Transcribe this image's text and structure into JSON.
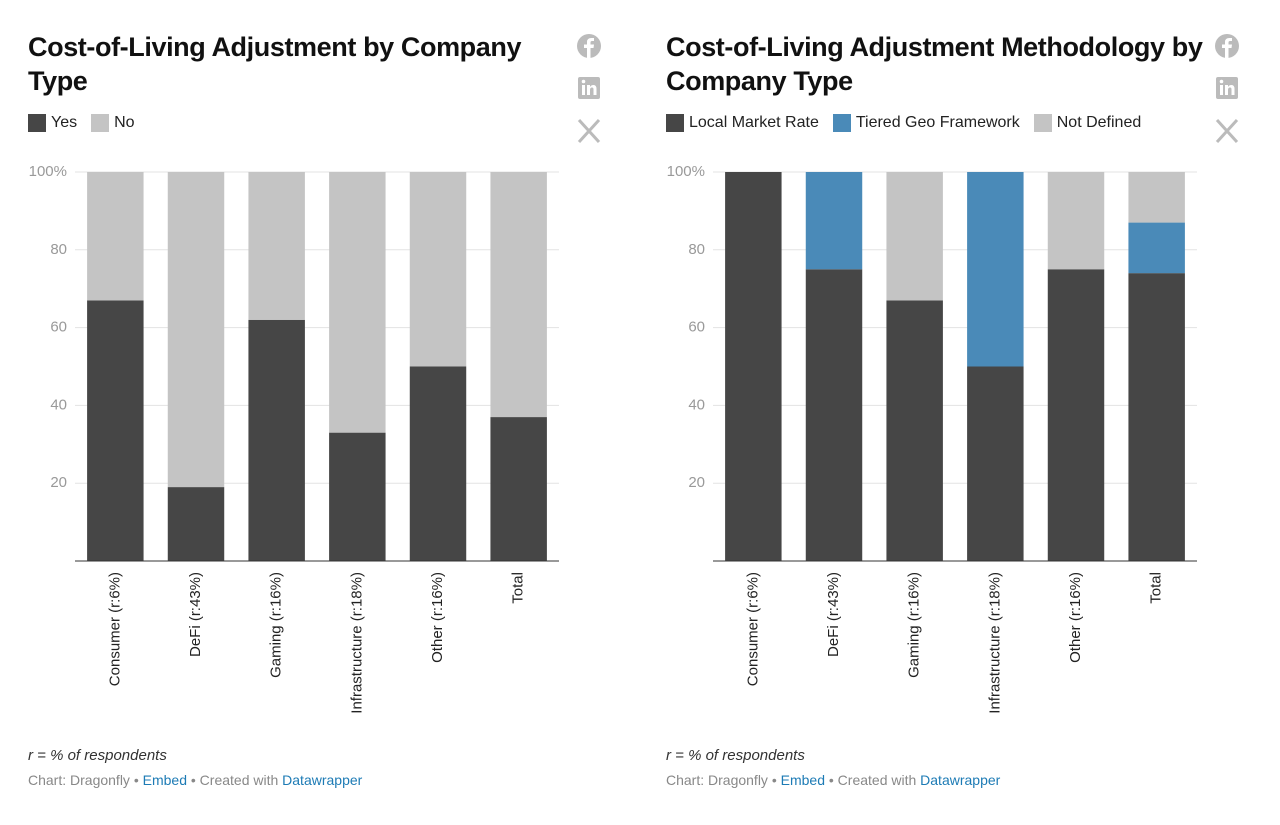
{
  "chart_data": [
    {
      "type": "bar",
      "stacked": true,
      "title": "Cost-of-Living Adjustment by Company Type",
      "categories": [
        "Consumer (r:6%)",
        "DeFi (r:43%)",
        "Gaming (r:16%)",
        "Infrastructure (r:18%)",
        "Other (r:16%)",
        "Total"
      ],
      "series": [
        {
          "name": "Yes",
          "color": "#464646",
          "values": [
            67,
            19,
            62,
            33,
            50,
            37
          ]
        },
        {
          "name": "No",
          "color": "#c4c4c4",
          "values": [
            33,
            81,
            38,
            67,
            50,
            63
          ]
        }
      ],
      "ylim": [
        0,
        100
      ],
      "yticks": [
        {
          "value": 100,
          "label": "100%"
        },
        80,
        60,
        40,
        20
      ],
      "grid": true,
      "note": "r = % of respondents",
      "credit": {
        "source": "Chart: Dragonfly",
        "separator": "•",
        "embed": "Embed",
        "created": "Created with",
        "tool": "Datawrapper"
      }
    },
    {
      "type": "bar",
      "stacked": true,
      "title": "Cost-of-Living Adjustment Methodology by Company Type",
      "categories": [
        "Consumer (r:6%)",
        "DeFi (r:43%)",
        "Gaming (r:16%)",
        "Infrastructure (r:18%)",
        "Other (r:16%)",
        "Total"
      ],
      "series": [
        {
          "name": "Local Market Rate",
          "color": "#464646",
          "values": [
            100,
            75,
            67,
            50,
            75,
            74
          ]
        },
        {
          "name": "Tiered Geo Framework",
          "color": "#4a8ab8",
          "values": [
            0,
            25,
            0,
            50,
            0,
            13
          ]
        },
        {
          "name": "Not Defined",
          "color": "#c4c4c4",
          "values": [
            0,
            0,
            33,
            0,
            25,
            13
          ]
        }
      ],
      "ylim": [
        0,
        100
      ],
      "yticks": [
        {
          "value": 100,
          "label": "100%"
        },
        80,
        60,
        40,
        20
      ],
      "grid": true,
      "note": "r = % of respondents",
      "credit": {
        "source": "Chart: Dragonfly",
        "separator": "•",
        "embed": "Embed",
        "created": "Created with",
        "tool": "Datawrapper"
      }
    }
  ]
}
